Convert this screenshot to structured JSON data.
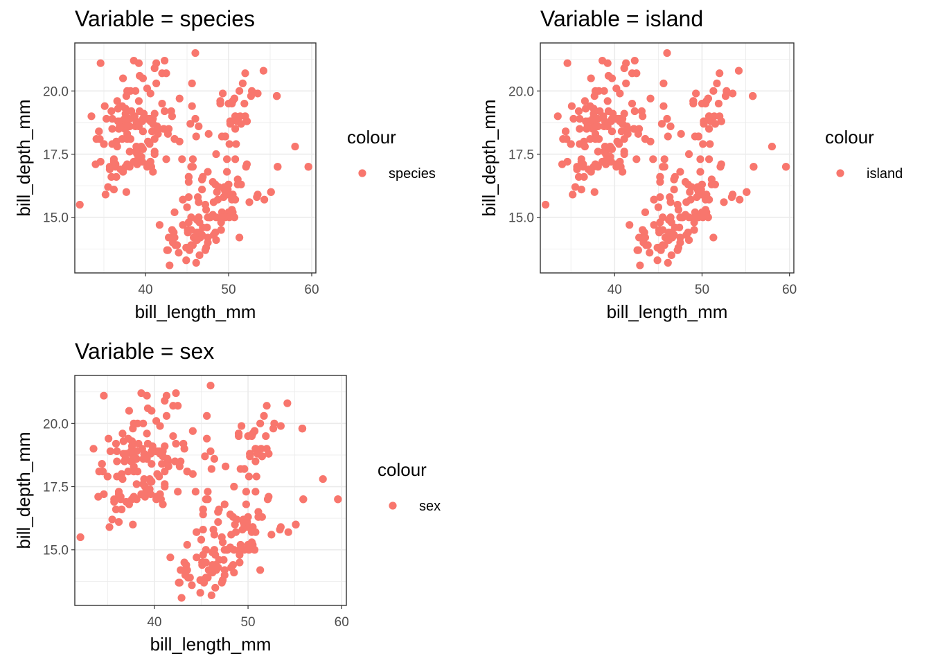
{
  "chart_data": [
    {
      "type": "scatter",
      "title": "Variable = species",
      "xlabel": "bill_length_mm",
      "ylabel": "bill_depth_mm",
      "xlim": [
        31.5,
        60.5
      ],
      "ylim": [
        12.8,
        21.9
      ],
      "xticks": [
        40,
        50,
        60
      ],
      "yticks": [
        15.0,
        17.5,
        20.0
      ],
      "grid": true,
      "legend": {
        "title": "colour",
        "position": "right",
        "entries": [
          {
            "label": "species",
            "color": "#F8766D"
          }
        ]
      },
      "series": [
        {
          "color": "#F8766D",
          "points": []
        }
      ]
    },
    {
      "type": "scatter",
      "title": "Variable = island",
      "xlabel": "bill_length_mm",
      "ylabel": "bill_depth_mm",
      "xlim": [
        31.5,
        60.5
      ],
      "ylim": [
        12.8,
        21.9
      ],
      "xticks": [
        40,
        50,
        60
      ],
      "yticks": [
        15.0,
        17.5,
        20.0
      ],
      "grid": true,
      "legend": {
        "title": "colour",
        "position": "right",
        "entries": [
          {
            "label": "island",
            "color": "#F8766D"
          }
        ]
      },
      "series": [
        {
          "color": "#F8766D",
          "points": []
        }
      ]
    },
    {
      "type": "scatter",
      "title": "Variable = sex",
      "xlabel": "bill_length_mm",
      "ylabel": "bill_depth_mm",
      "xlim": [
        31.5,
        60.5
      ],
      "ylim": [
        12.8,
        21.9
      ],
      "xticks": [
        40,
        50,
        60
      ],
      "yticks": [
        15.0,
        17.5,
        20.0
      ],
      "grid": true,
      "legend": {
        "title": "colour",
        "position": "right",
        "entries": [
          {
            "label": "sex",
            "color": "#F8766D"
          }
        ]
      },
      "series": [
        {
          "color": "#F8766D",
          "points": []
        }
      ]
    }
  ],
  "shared_points": [
    [
      46.0,
      21.5
    ],
    [
      38.6,
      21.2
    ],
    [
      39.2,
      21.1
    ],
    [
      34.6,
      21.1
    ],
    [
      41.1,
      20.9
    ],
    [
      54.2,
      20.8
    ],
    [
      42.0,
      20.7
    ],
    [
      39.7,
      20.5
    ],
    [
      52.0,
      20.7
    ],
    [
      37.8,
      20.0
    ],
    [
      55.8,
      19.8
    ],
    [
      36.6,
      19.6
    ],
    [
      52.0,
      19.0
    ],
    [
      51.3,
      20.0
    ],
    [
      40.6,
      19.9
    ],
    [
      50.4,
      19.5
    ],
    [
      49.0,
      19.5
    ],
    [
      53.5,
      19.9
    ],
    [
      44.1,
      19.7
    ],
    [
      38.7,
      19.0
    ],
    [
      38.1,
      18.9
    ],
    [
      35.9,
      19.2
    ],
    [
      33.5,
      19.0
    ],
    [
      37.0,
      18.8
    ],
    [
      36.2,
      17.3
    ],
    [
      34.4,
      18.4
    ],
    [
      39.1,
      18.7
    ],
    [
      39.5,
      17.4
    ],
    [
      40.3,
      18.0
    ],
    [
      36.7,
      19.3
    ],
    [
      39.3,
      20.6
    ],
    [
      38.9,
      17.8
    ],
    [
      37.8,
      18.1
    ],
    [
      41.1,
      17.6
    ],
    [
      38.6,
      17.2
    ],
    [
      34.6,
      17.2
    ],
    [
      42.5,
      20.7
    ],
    [
      46.0,
      18.9
    ],
    [
      37.7,
      18.7
    ],
    [
      35.9,
      16.6
    ],
    [
      38.2,
      18.1
    ],
    [
      39.2,
      19.6
    ],
    [
      36.5,
      18.0
    ],
    [
      42.0,
      19.5
    ],
    [
      41.4,
      18.5
    ],
    [
      40.6,
      18.8
    ],
    [
      37.9,
      18.6
    ],
    [
      39.6,
      17.7
    ],
    [
      43.2,
      19.0
    ],
    [
      36.0,
      17.9
    ],
    [
      40.9,
      18.9
    ],
    [
      42.2,
      18.5
    ],
    [
      37.6,
      19.3
    ],
    [
      39.7,
      18.9
    ],
    [
      38.8,
      17.2
    ],
    [
      35.7,
      16.9
    ],
    [
      41.3,
      21.1
    ],
    [
      37.2,
      18.1
    ],
    [
      40.5,
      17.9
    ],
    [
      32.1,
      15.5
    ],
    [
      34.0,
      17.1
    ],
    [
      37.3,
      16.8
    ],
    [
      35.0,
      17.9
    ],
    [
      41.5,
      18.3
    ],
    [
      44.1,
      18.0
    ],
    [
      39.6,
      18.8
    ],
    [
      38.1,
      17.0
    ],
    [
      37.5,
      18.9
    ],
    [
      36.4,
      17.1
    ],
    [
      40.8,
      18.4
    ],
    [
      39.0,
      17.5
    ],
    [
      45.6,
      20.3
    ],
    [
      42.3,
      21.2
    ],
    [
      46.1,
      18.2
    ],
    [
      45.5,
      17.0
    ],
    [
      50.0,
      19.5
    ],
    [
      51.7,
      20.3
    ],
    [
      49.2,
      18.2
    ],
    [
      50.5,
      19.6
    ],
    [
      52.7,
      19.8
    ],
    [
      46.4,
      18.6
    ],
    [
      49.0,
      19.6
    ],
    [
      47.5,
      16.8
    ],
    [
      50.2,
      18.8
    ],
    [
      48.5,
      17.5
    ],
    [
      51.5,
      18.7
    ],
    [
      49.6,
      18.2
    ],
    [
      50.8,
      19.0
    ],
    [
      46.9,
      16.6
    ],
    [
      52.8,
      20.0
    ],
    [
      45.2,
      16.6
    ],
    [
      51.0,
      18.8
    ],
    [
      50.7,
      19.7
    ],
    [
      45.4,
      18.7
    ],
    [
      55.8,
      19.8
    ],
    [
      58.0,
      17.8
    ],
    [
      59.6,
      17.0
    ],
    [
      55.9,
      17.0
    ],
    [
      47.6,
      18.3
    ],
    [
      43.5,
      18.1
    ],
    [
      46.8,
      16.5
    ],
    [
      53.5,
      15.9
    ],
    [
      55.1,
      16.0
    ],
    [
      50.0,
      16.3
    ],
    [
      49.2,
      15.2
    ],
    [
      45.1,
      14.5
    ],
    [
      46.5,
      13.5
    ],
    [
      46.3,
      15.8
    ],
    [
      42.9,
      13.1
    ],
    [
      46.1,
      13.2
    ],
    [
      44.5,
      15.7
    ],
    [
      47.8,
      15.0
    ],
    [
      48.2,
      14.3
    ],
    [
      50.0,
      15.2
    ],
    [
      47.3,
      15.3
    ],
    [
      42.8,
      14.2
    ],
    [
      45.1,
      14.5
    ],
    [
      59.6,
      17.0
    ],
    [
      49.1,
      14.8
    ],
    [
      48.4,
      16.3
    ],
    [
      42.6,
      13.7
    ],
    [
      44.4,
      17.3
    ],
    [
      44.0,
      13.6
    ],
    [
      48.7,
      15.7
    ],
    [
      42.7,
      13.7
    ],
    [
      49.6,
      16.0
    ],
    [
      45.3,
      13.7
    ],
    [
      49.6,
      15.0
    ],
    [
      50.5,
      15.9
    ],
    [
      43.6,
      13.9
    ],
    [
      45.5,
      13.9
    ],
    [
      50.5,
      15.9
    ],
    [
      44.9,
      13.3
    ],
    [
      45.2,
      15.8
    ],
    [
      46.6,
      14.2
    ],
    [
      48.5,
      14.1
    ],
    [
      45.1,
      14.4
    ],
    [
      50.1,
      15.0
    ],
    [
      46.5,
      14.4
    ],
    [
      45.0,
      15.4
    ],
    [
      43.8,
      13.9
    ],
    [
      45.5,
      15.0
    ],
    [
      43.2,
      14.5
    ],
    [
      50.4,
      15.3
    ],
    [
      45.3,
      13.8
    ],
    [
      46.2,
      14.9
    ],
    [
      45.7,
      13.9
    ],
    [
      54.3,
      15.7
    ],
    [
      45.8,
      14.2
    ],
    [
      49.8,
      16.8
    ],
    [
      46.2,
      14.4
    ],
    [
      49.5,
      16.2
    ],
    [
      43.5,
      14.2
    ],
    [
      50.7,
      15.0
    ],
    [
      47.7,
      15.0
    ],
    [
      46.4,
      15.6
    ],
    [
      48.2,
      15.6
    ],
    [
      46.5,
      14.8
    ],
    [
      46.4,
      15.0
    ],
    [
      48.6,
      16.0
    ],
    [
      47.5,
      14.2
    ],
    [
      51.1,
      16.3
    ],
    [
      45.2,
      13.8
    ],
    [
      45.2,
      16.4
    ],
    [
      49.1,
      14.5
    ],
    [
      52.5,
      15.6
    ],
    [
      47.4,
      14.6
    ],
    [
      50.0,
      15.9
    ],
    [
      44.9,
      13.8
    ],
    [
      50.8,
      17.3
    ],
    [
      43.4,
      14.4
    ],
    [
      51.3,
      14.2
    ],
    [
      47.5,
      14.0
    ],
    [
      52.1,
      17.0
    ],
    [
      47.5,
      15.0
    ],
    [
      52.2,
      17.1
    ],
    [
      45.5,
      14.5
    ],
    [
      49.5,
      16.1
    ],
    [
      44.5,
      14.7
    ],
    [
      50.8,
      15.7
    ],
    [
      49.4,
      15.8
    ],
    [
      46.9,
      14.6
    ],
    [
      48.4,
      14.4
    ],
    [
      51.1,
      16.5
    ],
    [
      48.5,
      15.0
    ],
    [
      55.9,
      17.0
    ],
    [
      47.2,
      15.5
    ],
    [
      49.1,
      15.0
    ],
    [
      47.3,
      13.8
    ],
    [
      46.8,
      16.1
    ],
    [
      41.7,
      14.7
    ],
    [
      53.4,
      15.8
    ],
    [
      43.3,
      14.0
    ],
    [
      48.1,
      15.1
    ],
    [
      50.5,
      15.2
    ],
    [
      49.8,
      15.9
    ],
    [
      43.5,
      15.2
    ],
    [
      51.5,
      16.3
    ],
    [
      46.2,
      14.1
    ],
    [
      55.1,
      16.0
    ],
    [
      44.5,
      15.7
    ],
    [
      48.8,
      16.2
    ],
    [
      47.2,
      13.7
    ],
    [
      46.8,
      14.3
    ],
    [
      50.4,
      15.7
    ],
    [
      45.2,
      14.8
    ],
    [
      49.9,
      16.1
    ],
    [
      52.2,
      18.8
    ],
    [
      50.9,
      17.9
    ],
    [
      50.8,
      18.5
    ],
    [
      50.1,
      17.9
    ],
    [
      49.0,
      19.6
    ],
    [
      51.5,
      18.7
    ],
    [
      49.8,
      17.3
    ],
    [
      48.1,
      16.4
    ],
    [
      51.4,
      19.0
    ],
    [
      45.7,
      17.3
    ],
    [
      50.7,
      19.7
    ],
    [
      42.5,
      17.3
    ],
    [
      52.2,
      18.8
    ],
    [
      45.2,
      16.6
    ],
    [
      49.3,
      19.9
    ],
    [
      50.2,
      18.8
    ],
    [
      45.6,
      19.4
    ],
    [
      51.9,
      19.5
    ],
    [
      46.8,
      16.5
    ],
    [
      45.7,
      17.0
    ],
    [
      55.8,
      19.8
    ],
    [
      43.5,
      18.1
    ],
    [
      49.6,
      18.2
    ],
    [
      50.8,
      19.0
    ],
    [
      50.2,
      18.7
    ],
    [
      36.4,
      17.0
    ],
    [
      42.2,
      18.5
    ],
    [
      41.1,
      17.5
    ],
    [
      37.7,
      16.0
    ],
    [
      40.2,
      17.1
    ],
    [
      39.5,
      17.8
    ],
    [
      39.0,
      17.1
    ],
    [
      37.3,
      20.5
    ],
    [
      40.6,
      17.2
    ],
    [
      36.2,
      16.1
    ],
    [
      34.5,
      18.1
    ],
    [
      40.9,
      16.8
    ],
    [
      36.6,
      17.8
    ],
    [
      36.0,
      18.5
    ],
    [
      41.5,
      18.5
    ],
    [
      43.1,
      19.2
    ],
    [
      37.6,
      17.0
    ],
    [
      36.7,
      18.8
    ],
    [
      40.7,
      17.0
    ],
    [
      38.1,
      18.6
    ],
    [
      35.1,
      19.4
    ],
    [
      37.0,
      16.9
    ],
    [
      36.0,
      18.9
    ],
    [
      41.1,
      19.1
    ],
    [
      39.7,
      18.4
    ],
    [
      40.8,
      18.9
    ],
    [
      38.2,
      20.0
    ],
    [
      40.1,
      18.9
    ],
    [
      40.6,
      17.2
    ],
    [
      36.5,
      16.6
    ],
    [
      38.6,
      17.2
    ],
    [
      35.7,
      17.0
    ],
    [
      39.1,
      17.3
    ],
    [
      42.3,
      19.2
    ],
    [
      38.8,
      18.6
    ],
    [
      40.3,
      18.9
    ],
    [
      37.5,
      18.5
    ],
    [
      41.1,
      18.1
    ],
    [
      40.2,
      17.0
    ],
    [
      35.2,
      15.9
    ],
    [
      40.2,
      20.1
    ],
    [
      37.6,
      19.1
    ],
    [
      38.8,
      20.0
    ],
    [
      37.8,
      18.3
    ],
    [
      39.7,
      17.7
    ],
    [
      34.1,
      18.1
    ],
    [
      38.1,
      17.6
    ],
    [
      41.4,
      18.6
    ],
    [
      39.6,
      17.2
    ],
    [
      36.2,
      17.2
    ],
    [
      40.9,
      18.7
    ],
    [
      37.7,
      19.8
    ],
    [
      42.8,
      18.5
    ],
    [
      35.5,
      16.2
    ],
    [
      37.9,
      18.6
    ],
    [
      38.9,
      18.8
    ],
    [
      37.2,
      19.4
    ],
    [
      39.8,
      19.1
    ],
    [
      35.3,
      18.9
    ],
    [
      40.5,
      18.9
    ],
    [
      36.8,
      18.5
    ],
    [
      39.2,
      18.6
    ],
    [
      38.8,
      17.6
    ],
    [
      42.7,
      18.3
    ],
    [
      39.3,
      19.2
    ],
    [
      38.3,
      19.2
    ],
    [
      40.5,
      18.9
    ],
    [
      41.3,
      20.3
    ],
    [
      37.8,
      17.1
    ],
    [
      35.0,
      17.9
    ],
    [
      34.4,
      18.4
    ],
    [
      36.9,
      18.6
    ]
  ]
}
